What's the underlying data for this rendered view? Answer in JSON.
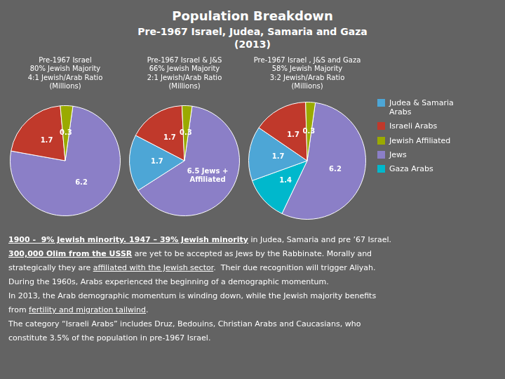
{
  "title": "Population Breakdown",
  "subtitle": "Pre-1967 Israel, Judea, Samaria and Gaza\n(2013)",
  "background_color": "#636363",
  "chart_data": [
    {
      "type": "pie",
      "title": "Pre-1967 Israel\n80% Jewish Majority\n4:1 Jewish/Arab Ratio\n(Millions)",
      "categories": [
        "Jews",
        "Israeli Arabs",
        "Jewish Affiliated"
      ],
      "values": [
        6.2,
        1.7,
        0.3
      ],
      "colors": [
        "#8b7fc7",
        "#c0392b",
        "#9aaa00"
      ],
      "data_labels": true
    },
    {
      "type": "pie",
      "title": "Pre-1967 Israel & J&S\n66% Jewish Majority\n2:1 Jewish/Arab Ratio\n(Millions)",
      "categories": [
        "Jews",
        "Judea & Samaria\nArabs",
        "Israeli Arabs",
        "Jewish Affiliated"
      ],
      "values": [
        6.5,
        1.7,
        1.7,
        0.3
      ],
      "value_labels": [
        "6.5 Jews +\nAffiliated",
        "1.7",
        "1.7",
        "0.3"
      ],
      "colors": [
        "#8b7fc7",
        "#4da6d6",
        "#c0392b",
        "#9aaa00"
      ],
      "data_labels": true
    },
    {
      "type": "pie",
      "title": "Pre-1967 Israel , J&S and Gaza\n58% Jewish Majority\n3:2 Jewish/Arab Ratio\n(Millions)",
      "categories": [
        "Jews",
        "Gaza Arabs",
        "Judea & Samaria\nArabs",
        "Israeli Arabs",
        "Jewish Affiliated"
      ],
      "values": [
        6.2,
        1.4,
        1.7,
        1.7,
        0.3
      ],
      "colors": [
        "#8b7fc7",
        "#00b8cc",
        "#4da6d6",
        "#c0392b",
        "#9aaa00"
      ],
      "data_labels": true
    }
  ],
  "legend_items": [
    {
      "label": "Judea & Samaria\nArabs",
      "color": "#4da6d6"
    },
    {
      "label": "Israeli Arabs",
      "color": "#c0392b"
    },
    {
      "label": "Jewish Affiliated",
      "color": "#9aaa00"
    },
    {
      "label": "Jews",
      "color": "#8b7fc7"
    },
    {
      "label": "Gaza Arabs",
      "color": "#00b8cc"
    }
  ],
  "annotations": [
    [
      {
        "text": "1900 -  9% Jewish minority. 1947 – 39% Jewish minority",
        "bold": true,
        "underline": true
      },
      {
        "text": " in Judea, Samaria and pre ’67 Israel.",
        "bold": false,
        "underline": false
      }
    ],
    [
      {
        "text": "300,000 Olim from the USSR",
        "bold": true,
        "underline": true
      },
      {
        "text": " are yet to be accepted as Jews by the Rabbinate. Morally and",
        "bold": false,
        "underline": false
      }
    ],
    [
      {
        "text": "strategically they are ",
        "bold": false,
        "underline": false
      },
      {
        "text": "affiliated with the Jewish sector",
        "bold": false,
        "underline": true
      },
      {
        "text": ".  Their due recognition will trigger Aliyah.",
        "bold": false,
        "underline": false
      }
    ],
    [
      {
        "text": "During the 1960s, Arabs experienced the beginning of a demographic momentum.",
        "bold": false,
        "underline": false
      }
    ],
    [
      {
        "text": "In 2013, the Arab demographic momentum is winding down, while the Jewish majority benefits",
        "bold": false,
        "underline": false
      }
    ],
    [
      {
        "text": "from ",
        "bold": false,
        "underline": false
      },
      {
        "text": "fertility and migration tailwind",
        "bold": false,
        "underline": true
      },
      {
        "text": ".",
        "bold": false,
        "underline": false
      }
    ],
    [
      {
        "text": "The category “Israeli Arabs” includes Druz, Bedouins, Christian Arabs and Caucasians, who",
        "bold": false,
        "underline": false
      }
    ],
    [
      {
        "text": "constitute 3.5% of the population in pre-1967 Israel.",
        "bold": false,
        "underline": false
      }
    ]
  ]
}
